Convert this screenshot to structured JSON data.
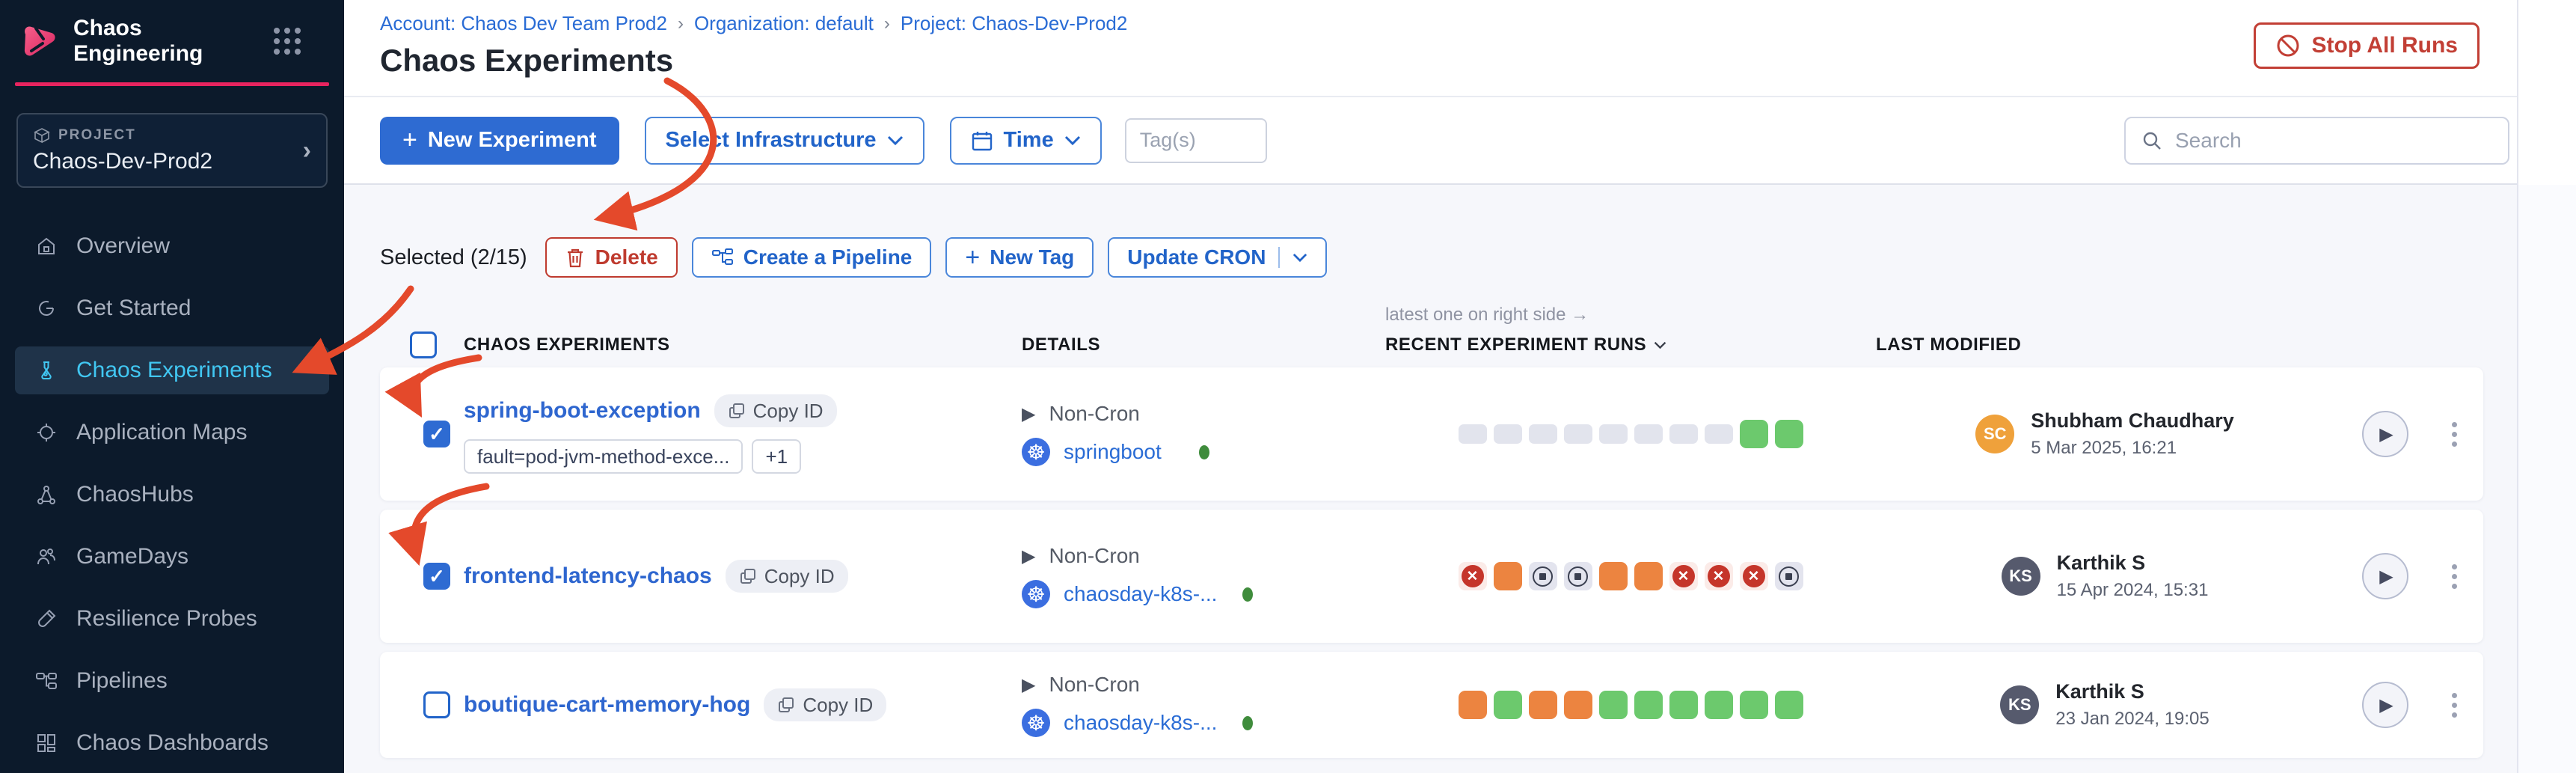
{
  "colors": {
    "brand_pink": "#e8245f",
    "primary_blue": "#2e6bd2",
    "link_blue": "#2a6cd5",
    "danger_red": "#c23f35",
    "annotation_arrow": "#e4492b",
    "run_pass_green": "#6cc96d",
    "run_running_orange": "#ec8440",
    "run_failed_red": "#c5352a",
    "sidebar_navy": "#0c1a2b",
    "active_nav_cyan": "#41c7f2"
  },
  "sidebar": {
    "brand": "Chaos Engineering",
    "project_label": "PROJECT",
    "project_name": "Chaos-Dev-Prod2",
    "items": [
      {
        "label": "Overview"
      },
      {
        "label": "Get Started"
      },
      {
        "label": "Chaos Experiments"
      },
      {
        "label": "Application Maps"
      },
      {
        "label": "ChaosHubs"
      },
      {
        "label": "GameDays"
      },
      {
        "label": "Resilience Probes"
      },
      {
        "label": "Pipelines"
      },
      {
        "label": "Chaos Dashboards"
      }
    ]
  },
  "breadcrumb": {
    "items": [
      "Account: Chaos Dev Team Prod2",
      "Organization: default",
      "Project: Chaos-Dev-Prod2"
    ]
  },
  "page": {
    "title": "Chaos Experiments"
  },
  "actions": {
    "stop_all_runs": "Stop All Runs"
  },
  "toolbar": {
    "new_experiment": "New Experiment",
    "select_infrastructure": "Select Infrastructure",
    "time": "Time",
    "tags_placeholder": "Tag(s)",
    "search_placeholder": "Search"
  },
  "selection": {
    "label": "Selected (2/15)",
    "delete": "Delete",
    "create_pipeline": "Create a Pipeline",
    "new_tag": "New Tag",
    "update_cron": "Update CRON"
  },
  "table": {
    "note": "latest one on right side →",
    "headers": {
      "experiments": "CHAOS EXPERIMENTS",
      "details": "DETAILS",
      "runs": "RECENT EXPERIMENT RUNS",
      "modified": "LAST MODIFIED"
    }
  },
  "experiments": [
    {
      "name": "spring-boot-exception",
      "copy_label": "Copy ID",
      "checked": true,
      "tags": {
        "main": "fault=pod-jvm-method-exce...",
        "more": "+1"
      },
      "schedule": "Non-Cron",
      "infra": "springboot",
      "runs": [
        "empty",
        "empty",
        "empty",
        "empty",
        "empty",
        "empty",
        "empty",
        "empty",
        "pass",
        "pass"
      ],
      "modified": {
        "initials": "SC",
        "name": "Shubham Chaudhary",
        "date": "5 Mar 2025, 16:21",
        "avatar_color": "#efa13b"
      }
    },
    {
      "name": "frontend-latency-chaos",
      "copy_label": "Copy ID",
      "checked": true,
      "schedule": "Non-Cron",
      "infra": "chaosday-k8s-...",
      "runs": [
        "failed",
        "running",
        "stopped",
        "stopped",
        "running",
        "running",
        "failed",
        "failed",
        "failed",
        "stopped"
      ],
      "modified": {
        "initials": "KS",
        "name": "Karthik S",
        "date": "15 Apr 2024, 15:31",
        "avatar_color": "#565a6d"
      }
    },
    {
      "name": "boutique-cart-memory-hog",
      "copy_label": "Copy ID",
      "checked": false,
      "schedule": "Non-Cron",
      "infra": "chaosday-k8s-...",
      "runs": [
        "running",
        "pass",
        "running",
        "running",
        "pass",
        "pass",
        "pass",
        "pass",
        "pass",
        "pass"
      ],
      "modified": {
        "initials": "KS",
        "name": "Karthik S",
        "date": "23 Jan 2024, 19:05",
        "avatar_color": "#565a6d"
      }
    }
  ]
}
